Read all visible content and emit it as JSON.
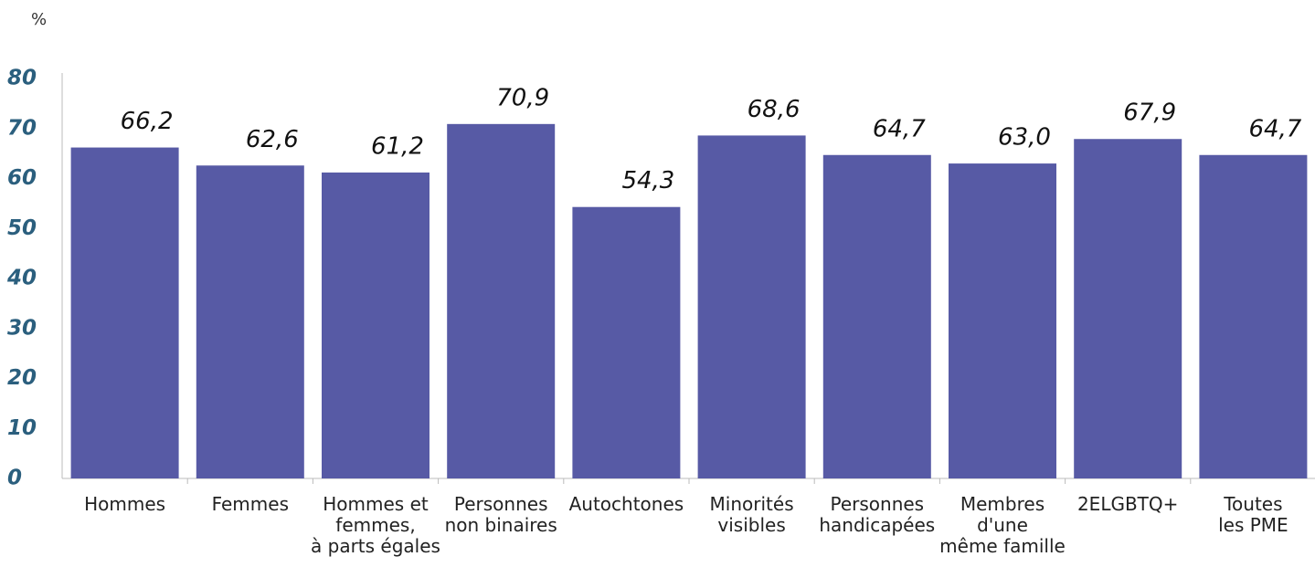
{
  "chart_data": {
    "type": "bar",
    "y_axis_label": "%",
    "categories": [
      "Hommes",
      "Femmes",
      "Hommes et\nfemmes,\nà parts égales",
      "Personnes\nnon binaires",
      "Autochtones",
      "Minorités\nvisibles",
      "Personnes\nhandicapées",
      "Membres\nd'une\nmême famille",
      "2ELGBTQ+",
      "Toutes\nles PME"
    ],
    "values": [
      66.2,
      62.6,
      61.2,
      70.9,
      54.3,
      68.6,
      64.7,
      63.0,
      67.9,
      64.7
    ],
    "value_labels": [
      "66,2",
      "62,6",
      "61,2",
      "70,9",
      "54,3",
      "68,6",
      "64,7",
      "63,0",
      "67,9",
      "64,7"
    ],
    "color": "#575aa5",
    "ylim": [
      0,
      80
    ],
    "yticks": [
      0,
      10,
      20,
      30,
      40,
      50,
      60,
      70,
      80
    ],
    "grid": false
  }
}
